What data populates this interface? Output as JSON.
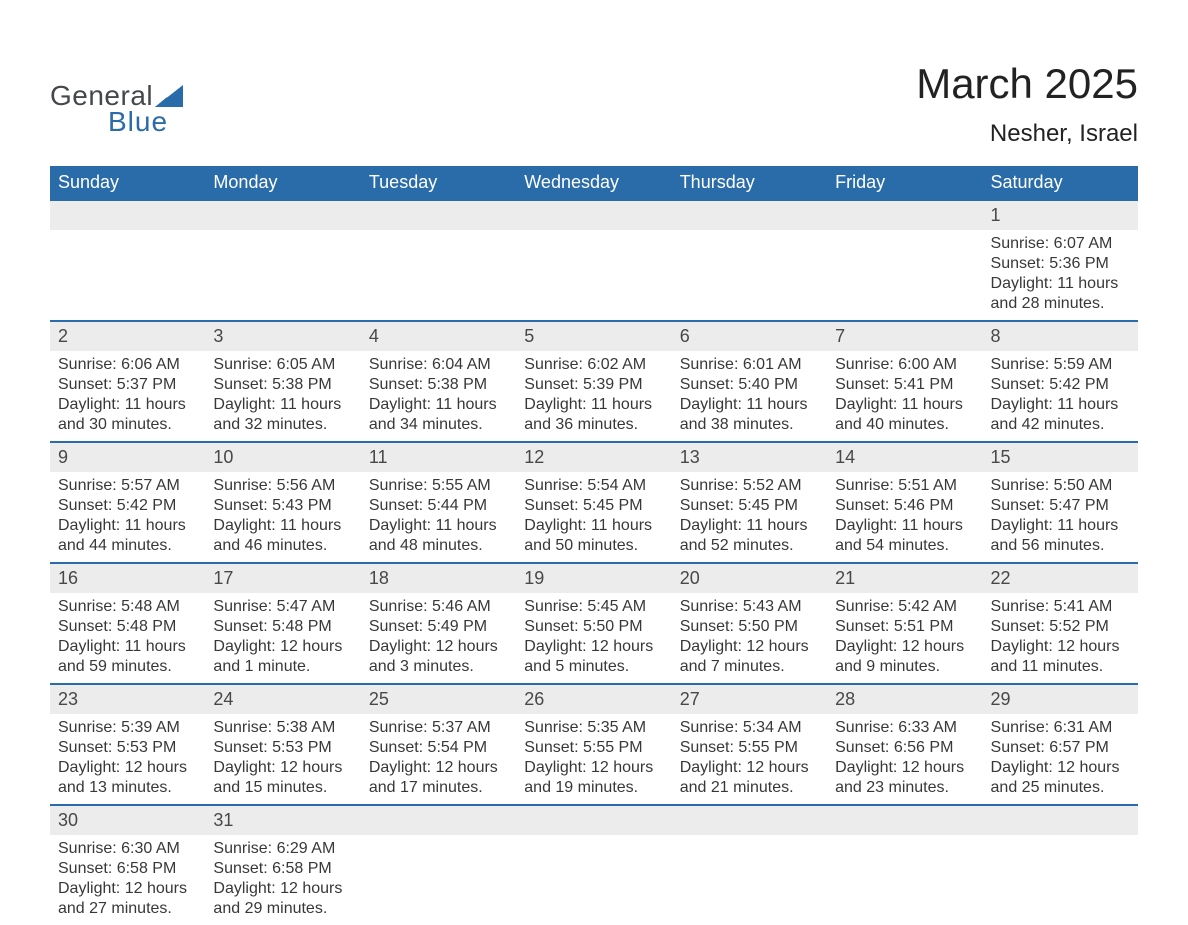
{
  "brand": {
    "line1": "General",
    "line2": "Blue",
    "general_color": "#44484b",
    "blue_color": "#2a6ca9",
    "triangle_color": "#2a6ca9"
  },
  "header": {
    "title": "March 2025",
    "location": "Nesher, Israel",
    "title_fontsize": 42,
    "sub_fontsize": 24
  },
  "calendar": {
    "header_bg": "#2a6ca9",
    "header_text_color": "#ffffff",
    "daynum_bg": "#ececec",
    "border_color": "#2a6ca9",
    "bg_color": "#ffffff",
    "text_color": "#383838",
    "cell_fontsize": 16,
    "daynum_fontsize": 18,
    "header_fontsize": 18,
    "day_headers": [
      "Sunday",
      "Monday",
      "Tuesday",
      "Wednesday",
      "Thursday",
      "Friday",
      "Saturday"
    ],
    "weeks": [
      [
        null,
        null,
        null,
        null,
        null,
        null,
        {
          "day": "1",
          "sunrise": "Sunrise: 6:07 AM",
          "sunset": "Sunset: 5:36 PM",
          "daylight1": "Daylight: 11 hours",
          "daylight2": "and 28 minutes."
        }
      ],
      [
        {
          "day": "2",
          "sunrise": "Sunrise: 6:06 AM",
          "sunset": "Sunset: 5:37 PM",
          "daylight1": "Daylight: 11 hours",
          "daylight2": "and 30 minutes."
        },
        {
          "day": "3",
          "sunrise": "Sunrise: 6:05 AM",
          "sunset": "Sunset: 5:38 PM",
          "daylight1": "Daylight: 11 hours",
          "daylight2": "and 32 minutes."
        },
        {
          "day": "4",
          "sunrise": "Sunrise: 6:04 AM",
          "sunset": "Sunset: 5:38 PM",
          "daylight1": "Daylight: 11 hours",
          "daylight2": "and 34 minutes."
        },
        {
          "day": "5",
          "sunrise": "Sunrise: 6:02 AM",
          "sunset": "Sunset: 5:39 PM",
          "daylight1": "Daylight: 11 hours",
          "daylight2": "and 36 minutes."
        },
        {
          "day": "6",
          "sunrise": "Sunrise: 6:01 AM",
          "sunset": "Sunset: 5:40 PM",
          "daylight1": "Daylight: 11 hours",
          "daylight2": "and 38 minutes."
        },
        {
          "day": "7",
          "sunrise": "Sunrise: 6:00 AM",
          "sunset": "Sunset: 5:41 PM",
          "daylight1": "Daylight: 11 hours",
          "daylight2": "and 40 minutes."
        },
        {
          "day": "8",
          "sunrise": "Sunrise: 5:59 AM",
          "sunset": "Sunset: 5:42 PM",
          "daylight1": "Daylight: 11 hours",
          "daylight2": "and 42 minutes."
        }
      ],
      [
        {
          "day": "9",
          "sunrise": "Sunrise: 5:57 AM",
          "sunset": "Sunset: 5:42 PM",
          "daylight1": "Daylight: 11 hours",
          "daylight2": "and 44 minutes."
        },
        {
          "day": "10",
          "sunrise": "Sunrise: 5:56 AM",
          "sunset": "Sunset: 5:43 PM",
          "daylight1": "Daylight: 11 hours",
          "daylight2": "and 46 minutes."
        },
        {
          "day": "11",
          "sunrise": "Sunrise: 5:55 AM",
          "sunset": "Sunset: 5:44 PM",
          "daylight1": "Daylight: 11 hours",
          "daylight2": "and 48 minutes."
        },
        {
          "day": "12",
          "sunrise": "Sunrise: 5:54 AM",
          "sunset": "Sunset: 5:45 PM",
          "daylight1": "Daylight: 11 hours",
          "daylight2": "and 50 minutes."
        },
        {
          "day": "13",
          "sunrise": "Sunrise: 5:52 AM",
          "sunset": "Sunset: 5:45 PM",
          "daylight1": "Daylight: 11 hours",
          "daylight2": "and 52 minutes."
        },
        {
          "day": "14",
          "sunrise": "Sunrise: 5:51 AM",
          "sunset": "Sunset: 5:46 PM",
          "daylight1": "Daylight: 11 hours",
          "daylight2": "and 54 minutes."
        },
        {
          "day": "15",
          "sunrise": "Sunrise: 5:50 AM",
          "sunset": "Sunset: 5:47 PM",
          "daylight1": "Daylight: 11 hours",
          "daylight2": "and 56 minutes."
        }
      ],
      [
        {
          "day": "16",
          "sunrise": "Sunrise: 5:48 AM",
          "sunset": "Sunset: 5:48 PM",
          "daylight1": "Daylight: 11 hours",
          "daylight2": "and 59 minutes."
        },
        {
          "day": "17",
          "sunrise": "Sunrise: 5:47 AM",
          "sunset": "Sunset: 5:48 PM",
          "daylight1": "Daylight: 12 hours",
          "daylight2": "and 1 minute."
        },
        {
          "day": "18",
          "sunrise": "Sunrise: 5:46 AM",
          "sunset": "Sunset: 5:49 PM",
          "daylight1": "Daylight: 12 hours",
          "daylight2": "and 3 minutes."
        },
        {
          "day": "19",
          "sunrise": "Sunrise: 5:45 AM",
          "sunset": "Sunset: 5:50 PM",
          "daylight1": "Daylight: 12 hours",
          "daylight2": "and 5 minutes."
        },
        {
          "day": "20",
          "sunrise": "Sunrise: 5:43 AM",
          "sunset": "Sunset: 5:50 PM",
          "daylight1": "Daylight: 12 hours",
          "daylight2": "and 7 minutes."
        },
        {
          "day": "21",
          "sunrise": "Sunrise: 5:42 AM",
          "sunset": "Sunset: 5:51 PM",
          "daylight1": "Daylight: 12 hours",
          "daylight2": "and 9 minutes."
        },
        {
          "day": "22",
          "sunrise": "Sunrise: 5:41 AM",
          "sunset": "Sunset: 5:52 PM",
          "daylight1": "Daylight: 12 hours",
          "daylight2": "and 11 minutes."
        }
      ],
      [
        {
          "day": "23",
          "sunrise": "Sunrise: 5:39 AM",
          "sunset": "Sunset: 5:53 PM",
          "daylight1": "Daylight: 12 hours",
          "daylight2": "and 13 minutes."
        },
        {
          "day": "24",
          "sunrise": "Sunrise: 5:38 AM",
          "sunset": "Sunset: 5:53 PM",
          "daylight1": "Daylight: 12 hours",
          "daylight2": "and 15 minutes."
        },
        {
          "day": "25",
          "sunrise": "Sunrise: 5:37 AM",
          "sunset": "Sunset: 5:54 PM",
          "daylight1": "Daylight: 12 hours",
          "daylight2": "and 17 minutes."
        },
        {
          "day": "26",
          "sunrise": "Sunrise: 5:35 AM",
          "sunset": "Sunset: 5:55 PM",
          "daylight1": "Daylight: 12 hours",
          "daylight2": "and 19 minutes."
        },
        {
          "day": "27",
          "sunrise": "Sunrise: 5:34 AM",
          "sunset": "Sunset: 5:55 PM",
          "daylight1": "Daylight: 12 hours",
          "daylight2": "and 21 minutes."
        },
        {
          "day": "28",
          "sunrise": "Sunrise: 6:33 AM",
          "sunset": "Sunset: 6:56 PM",
          "daylight1": "Daylight: 12 hours",
          "daylight2": "and 23 minutes."
        },
        {
          "day": "29",
          "sunrise": "Sunrise: 6:31 AM",
          "sunset": "Sunset: 6:57 PM",
          "daylight1": "Daylight: 12 hours",
          "daylight2": "and 25 minutes."
        }
      ],
      [
        {
          "day": "30",
          "sunrise": "Sunrise: 6:30 AM",
          "sunset": "Sunset: 6:58 PM",
          "daylight1": "Daylight: 12 hours",
          "daylight2": "and 27 minutes."
        },
        {
          "day": "31",
          "sunrise": "Sunrise: 6:29 AM",
          "sunset": "Sunset: 6:58 PM",
          "daylight1": "Daylight: 12 hours",
          "daylight2": "and 29 minutes."
        },
        null,
        null,
        null,
        null,
        null
      ]
    ]
  }
}
